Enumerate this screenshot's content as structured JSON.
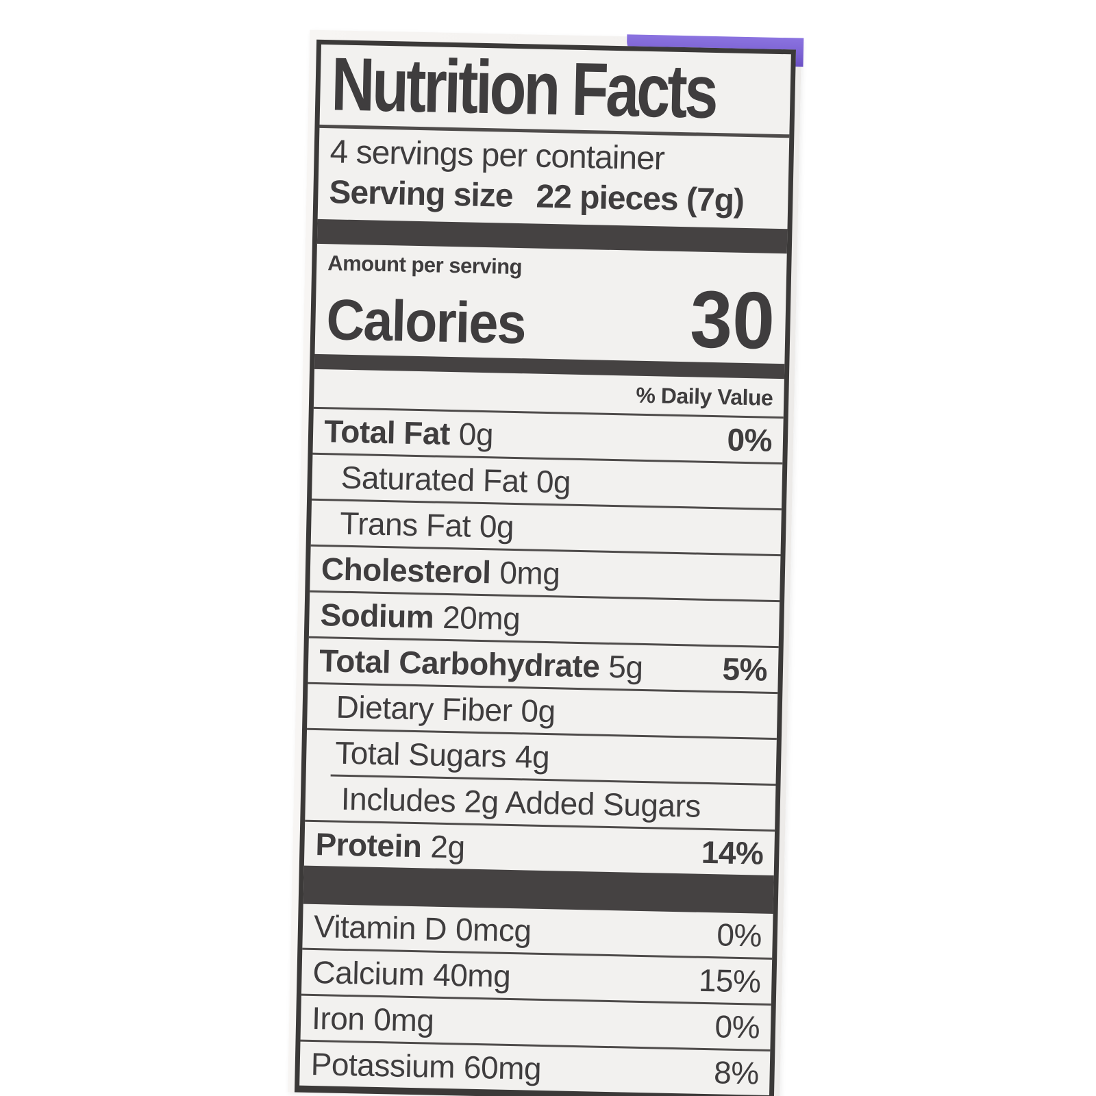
{
  "photo": {
    "package_corner_color": "#7c63d3",
    "paper_color": "#f2f1ef",
    "ink_color": "#3f3d3e"
  },
  "label": {
    "title": "Nutrition Facts",
    "servings_per_container": "4 servings per container",
    "serving_size_label": "Serving size",
    "serving_size_value": "22 pieces (7g)",
    "amount_per_serving": "Amount per serving",
    "calories_label": "Calories",
    "calories_value": "30",
    "daily_value_header": "% Daily Value",
    "rows": [
      {
        "name": "Total Fat",
        "amount": "0g",
        "percent": "0%"
      },
      {
        "name": "Saturated Fat",
        "amount": "0g",
        "percent": ""
      },
      {
        "name": "Trans Fat",
        "amount": "0g",
        "percent": ""
      },
      {
        "name": "Cholesterol",
        "amount": "0mg",
        "percent": ""
      },
      {
        "name": "Sodium",
        "amount": "20mg",
        "percent": ""
      },
      {
        "name": "Total Carbohydrate",
        "amount": "5g",
        "percent": "5%"
      },
      {
        "name": "Dietary Fiber",
        "amount": "0g",
        "percent": ""
      },
      {
        "name": "Total Sugars",
        "amount": "4g",
        "percent": ""
      },
      {
        "name": "Includes 2g Added Sugars",
        "amount": "",
        "percent": ""
      },
      {
        "name": "Protein",
        "amount": "2g",
        "percent": "14%"
      }
    ],
    "micronutrients": [
      {
        "name": "Vitamin D",
        "amount": "0mcg",
        "percent": "0%"
      },
      {
        "name": "Calcium",
        "amount": "40mg",
        "percent": "15%"
      },
      {
        "name": "Iron",
        "amount": "0mg",
        "percent": "0%"
      },
      {
        "name": "Potassium",
        "amount": "60mg",
        "percent": "8%"
      }
    ]
  }
}
